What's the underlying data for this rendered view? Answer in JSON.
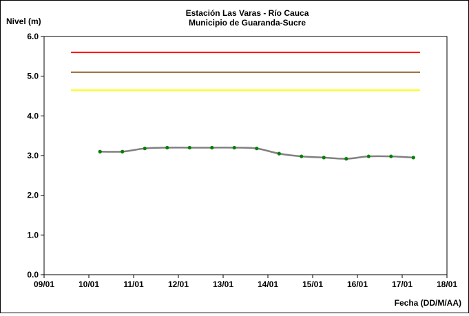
{
  "chart_data": {
    "type": "line",
    "title": "Estación Las Varas - Río Cauca",
    "subtitle": "Municipio de Guaranda-Sucre",
    "ylabel": "Nivel (m)",
    "xlabel": "Fecha (DD/M/AA)",
    "ylim": [
      0,
      6
    ],
    "y_ticks": [
      "0.0",
      "1.0",
      "2.0",
      "3.0",
      "4.0",
      "5.0",
      "6.0"
    ],
    "x_ticks": [
      "09/01",
      "10/01",
      "11/01",
      "12/01",
      "13/01",
      "14/01",
      "15/01",
      "16/01",
      "17/01",
      "18/01"
    ],
    "x_tick_values": [
      0,
      1,
      2,
      3,
      4,
      5,
      6,
      7,
      8,
      9
    ],
    "grid": false,
    "thresholds": [
      {
        "level": 5.6,
        "color": "#ff0000",
        "x_start": 0.6,
        "x_end": 8.4
      },
      {
        "level": 5.1,
        "color": "#996633",
        "x_start": 0.6,
        "x_end": 8.4
      },
      {
        "level": 4.65,
        "color": "#ffff00",
        "x_start": 0.6,
        "x_end": 8.4
      }
    ],
    "series": [
      {
        "line_color": "#808080",
        "marker_color": "#008000",
        "x": [
          1.25,
          1.75,
          2.25,
          2.75,
          3.25,
          3.75,
          4.25,
          4.75,
          5.25,
          5.75,
          6.25,
          6.75,
          7.25,
          7.75,
          8.25
        ],
        "values": [
          3.1,
          3.1,
          3.18,
          3.2,
          3.2,
          3.2,
          3.2,
          3.18,
          3.05,
          2.98,
          2.95,
          2.92,
          2.98,
          2.98,
          2.95
        ]
      }
    ]
  }
}
